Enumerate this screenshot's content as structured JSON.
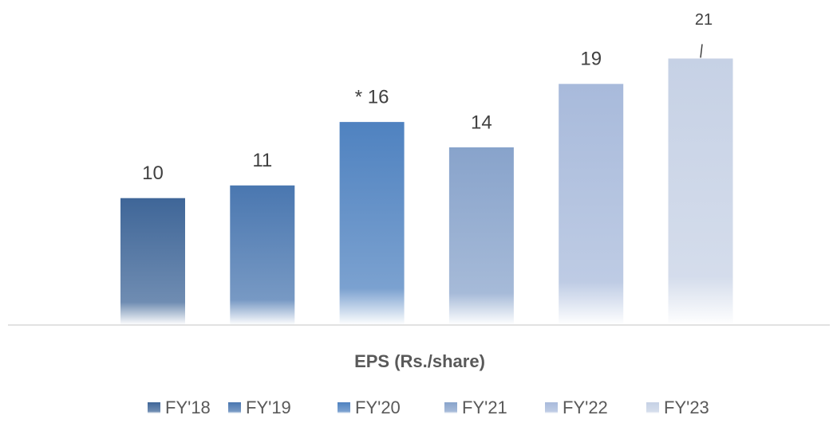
{
  "chart_data": {
    "type": "bar",
    "categories": [
      "EPS (Rs./share)"
    ],
    "series": [
      {
        "name": "FY'18",
        "color": "#3f6698",
        "values": [
          10
        ]
      },
      {
        "name": "FY'19",
        "color": "#4a77b0",
        "values": [
          11
        ]
      },
      {
        "name": "FY'20",
        "color": "#4f82c0",
        "values": [
          16
        ],
        "value_labels": [
          "* 16"
        ]
      },
      {
        "name": "FY'21",
        "color": "#88a3cb",
        "values": [
          14
        ]
      },
      {
        "name": "FY'22",
        "color": "#a8badb",
        "values": [
          19
        ]
      },
      {
        "name": "FY'23",
        "color": "#c6d1e5",
        "values": [
          21
        ]
      }
    ]
  }
}
